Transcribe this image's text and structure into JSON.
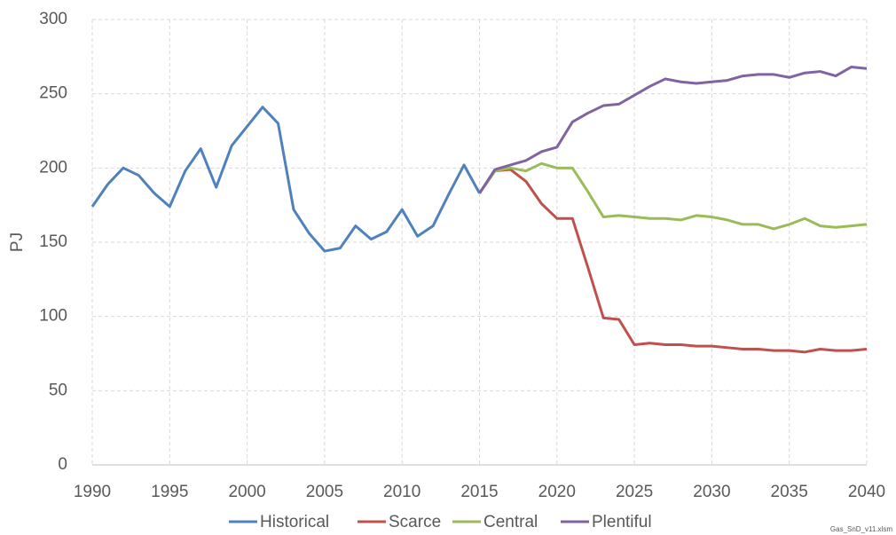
{
  "chart_data": {
    "type": "line",
    "ylabel": "PJ",
    "annotation": "Gas_SnD_v11.xlsm",
    "x": [
      1990,
      1991,
      1992,
      1993,
      1994,
      1995,
      1996,
      1997,
      1998,
      1999,
      2000,
      2001,
      2002,
      2003,
      2004,
      2005,
      2006,
      2007,
      2008,
      2009,
      2010,
      2011,
      2012,
      2013,
      2014,
      2015,
      2016,
      2017,
      2018,
      2019,
      2020,
      2021,
      2022,
      2023,
      2024,
      2025,
      2026,
      2027,
      2028,
      2029,
      2030,
      2031,
      2032,
      2033,
      2034,
      2035,
      2036,
      2037,
      2038,
      2039,
      2040
    ],
    "series": [
      {
        "name": "Historical",
        "color": "#4f81bd",
        "values": [
          174,
          189,
          200,
          195,
          183,
          174,
          198,
          213,
          187,
          215,
          228,
          241,
          230,
          172,
          156,
          144,
          146,
          161,
          152,
          157,
          172,
          154,
          161,
          182,
          202,
          183,
          null,
          null,
          null,
          null,
          null,
          null,
          null,
          null,
          null,
          null,
          null,
          null,
          null,
          null,
          null,
          null,
          null,
          null,
          null,
          null,
          null,
          null,
          null,
          null,
          null
        ]
      },
      {
        "name": "Scarce",
        "color": "#c0504d",
        "values": [
          null,
          null,
          null,
          null,
          null,
          null,
          null,
          null,
          null,
          null,
          null,
          null,
          null,
          null,
          null,
          null,
          null,
          null,
          null,
          null,
          null,
          null,
          null,
          null,
          null,
          183,
          198,
          199,
          191,
          176,
          166,
          166,
          133,
          99,
          98,
          81,
          82,
          81,
          81,
          80,
          80,
          79,
          78,
          78,
          77,
          77,
          76,
          78,
          77,
          77,
          78
        ]
      },
      {
        "name": "Central",
        "color": "#9bbb59",
        "values": [
          null,
          null,
          null,
          null,
          null,
          null,
          null,
          null,
          null,
          null,
          null,
          null,
          null,
          null,
          null,
          null,
          null,
          null,
          null,
          null,
          null,
          null,
          null,
          null,
          null,
          183,
          198,
          200,
          198,
          203,
          200,
          200,
          184,
          167,
          168,
          167,
          166,
          166,
          165,
          168,
          167,
          165,
          162,
          162,
          159,
          162,
          166,
          161,
          160,
          161,
          162
        ]
      },
      {
        "name": "Plentiful",
        "color": "#8064a2",
        "values": [
          null,
          null,
          null,
          null,
          null,
          null,
          null,
          null,
          null,
          null,
          null,
          null,
          null,
          null,
          null,
          null,
          null,
          null,
          null,
          null,
          null,
          null,
          null,
          null,
          null,
          183,
          199,
          202,
          205,
          211,
          214,
          231,
          237,
          242,
          243,
          249,
          255,
          260,
          258,
          257,
          258,
          259,
          262,
          263,
          263,
          261,
          264,
          265,
          262,
          268,
          267
        ]
      }
    ],
    "xlim": [
      1990,
      2040
    ],
    "xticks": [
      1990,
      1995,
      2000,
      2005,
      2010,
      2015,
      2020,
      2025,
      2030,
      2035,
      2040
    ],
    "ylim": [
      0,
      300
    ],
    "yticks": [
      0,
      50,
      100,
      150,
      200,
      250,
      300
    ],
    "grid": true,
    "legend": "bottom"
  }
}
